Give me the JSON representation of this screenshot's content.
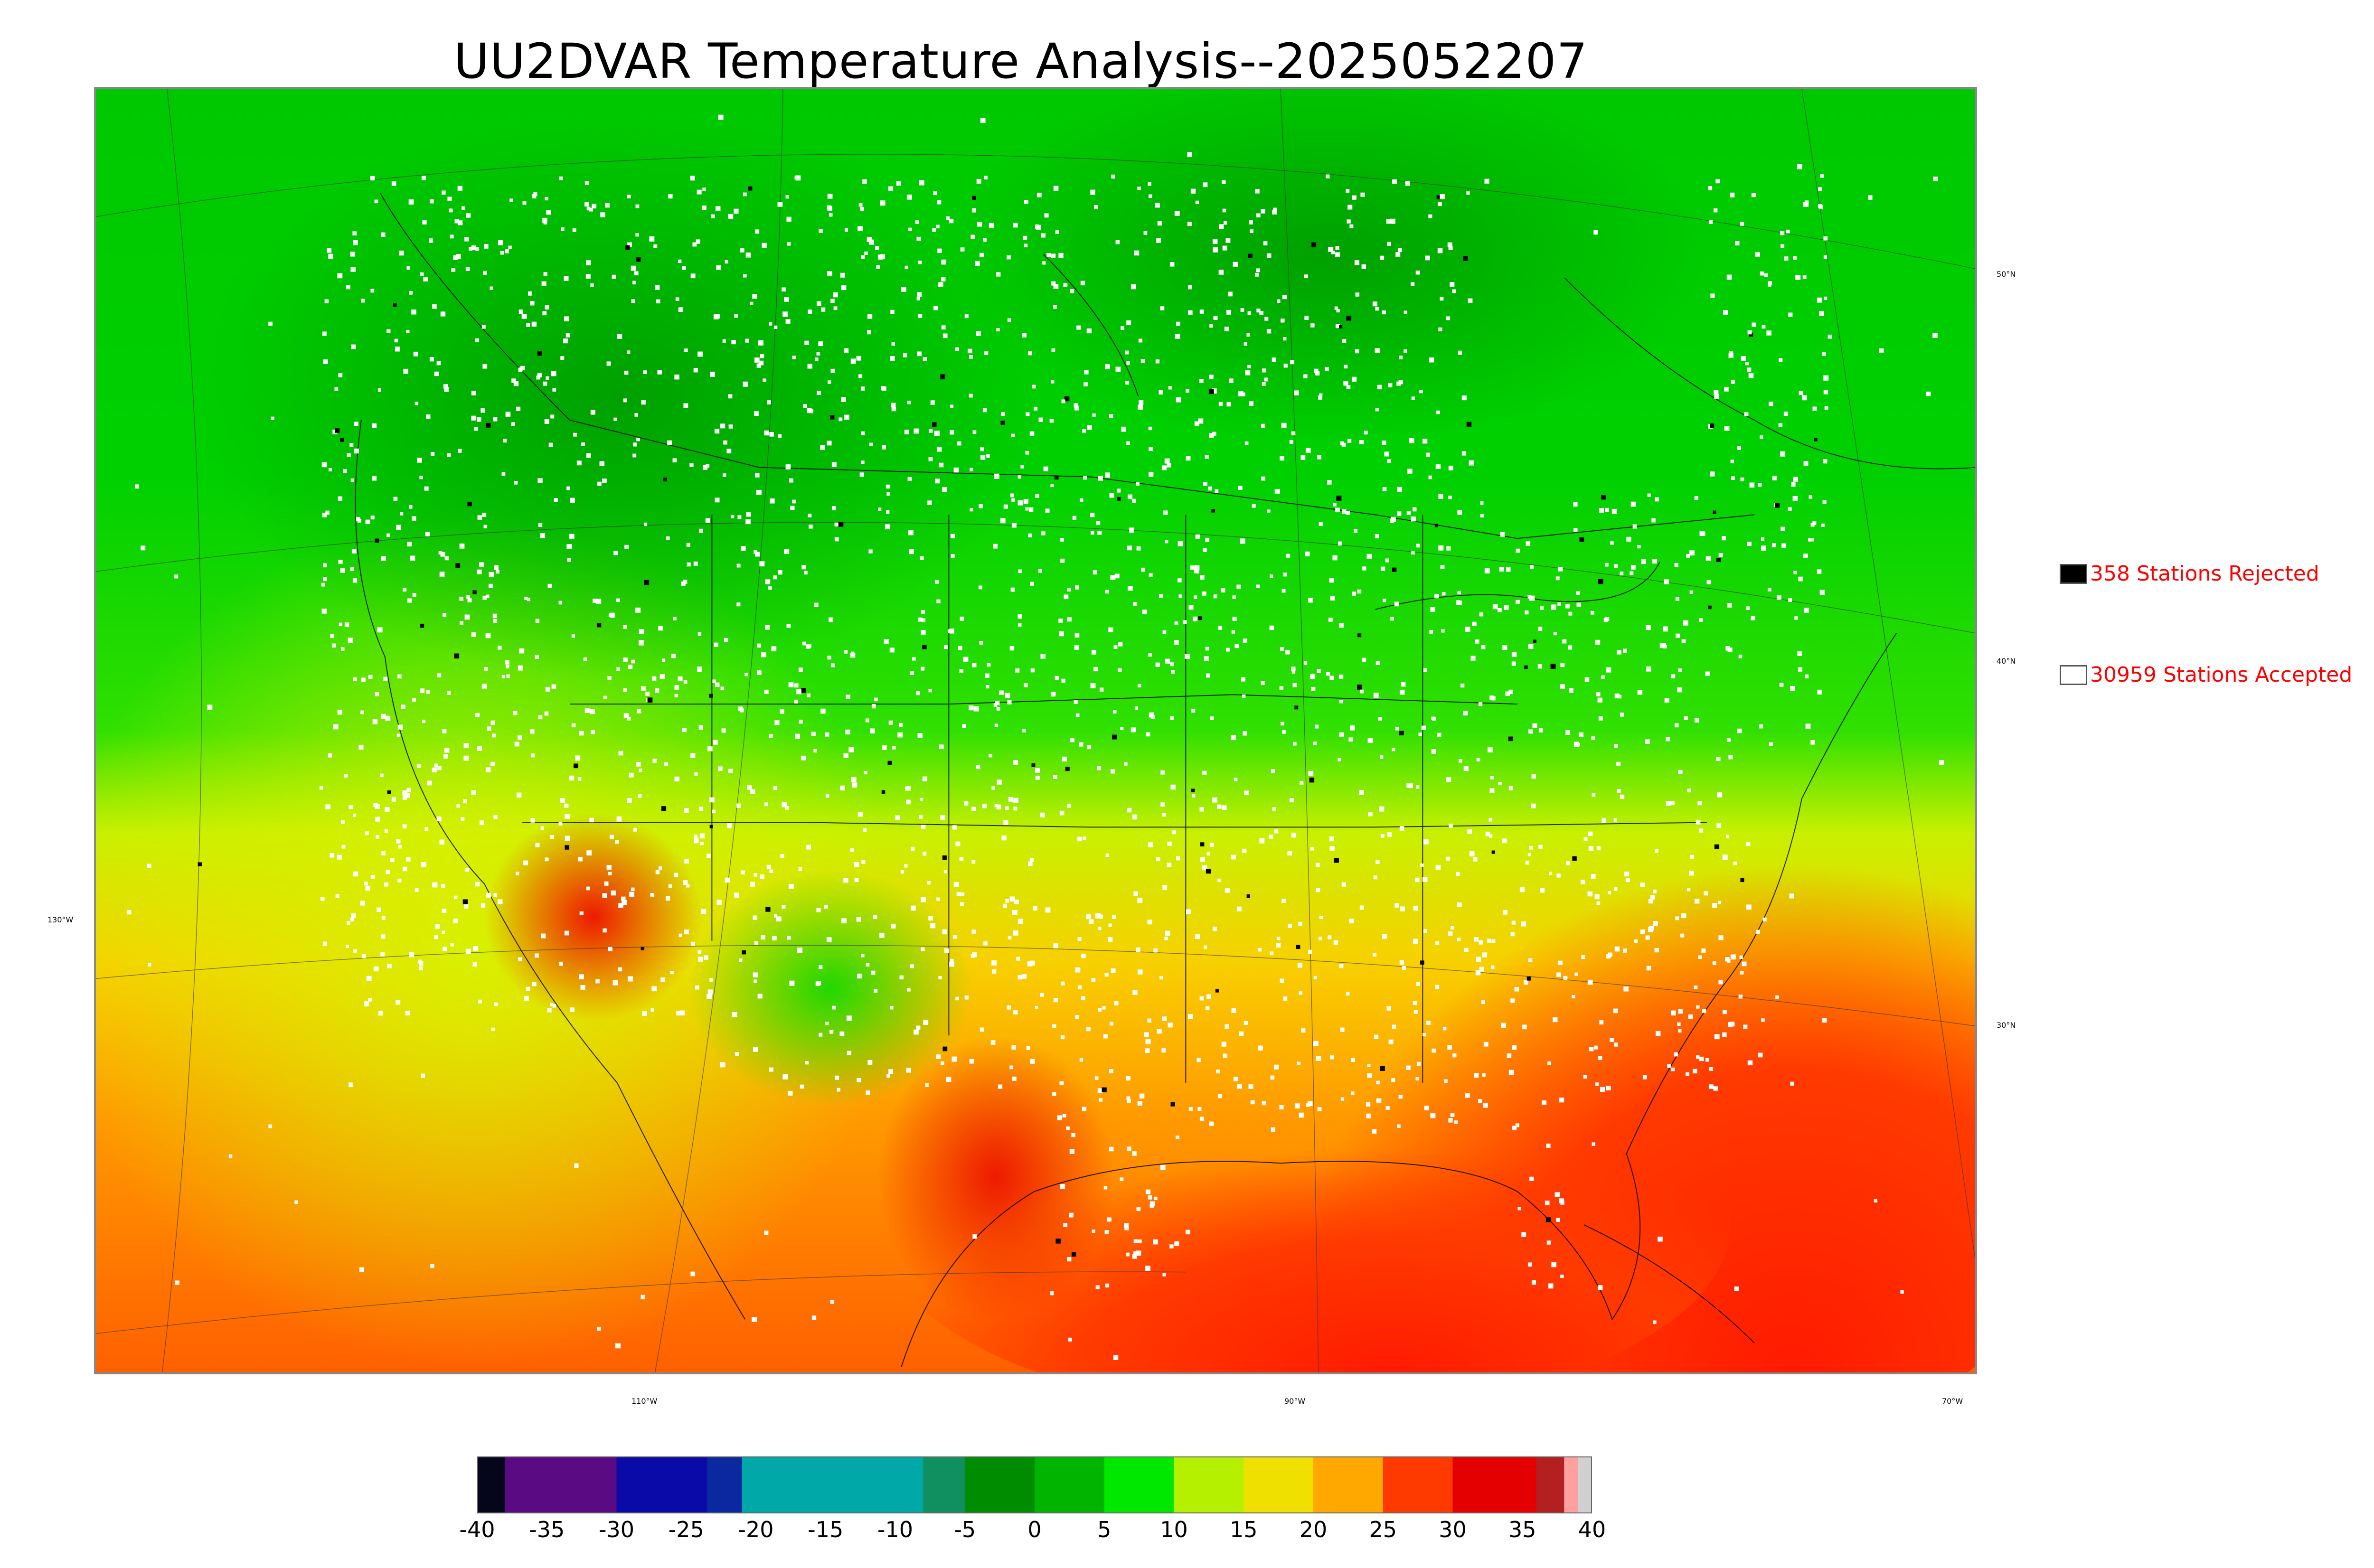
{
  "title": "UU2DVAR Temperature Analysis--2025052207",
  "legend": {
    "rejected": {
      "label": "358 Stations Rejected",
      "color": "#000000"
    },
    "accepted": {
      "label": "30959 Stations Accepted",
      "color": "#ffffff"
    },
    "text_color": "#ff0000"
  },
  "longitude_labels": [
    "130°W",
    "110°W",
    "90°W",
    "70°W"
  ],
  "latitude_labels": [
    "50°N",
    "40°N",
    "30°N"
  ],
  "colorbar": {
    "min": -40,
    "max": 40,
    "ticks": [
      "-40",
      "-35",
      "-30",
      "-25",
      "-20",
      "-15",
      "-10",
      "-5",
      "0",
      "5",
      "10",
      "15",
      "20",
      "25",
      "30",
      "35",
      "40"
    ],
    "colors": [
      {
        "from": -40,
        "to": -38,
        "color": "#06061a"
      },
      {
        "from": -38,
        "to": -30,
        "color": "#5a0a82"
      },
      {
        "from": -30,
        "to": -23.5,
        "color": "#0a0aa8"
      },
      {
        "from": -23.5,
        "to": -21,
        "color": "#0a28a0"
      },
      {
        "from": -21,
        "to": -8,
        "color": "#00a8a8"
      },
      {
        "from": -8,
        "to": -5,
        "color": "#109060"
      },
      {
        "from": -5,
        "to": 0,
        "color": "#008c00"
      },
      {
        "from": 0,
        "to": 5,
        "color": "#00b400"
      },
      {
        "from": 5,
        "to": 10,
        "color": "#00e800"
      },
      {
        "from": 10,
        "to": 15,
        "color": "#b4f000"
      },
      {
        "from": 15,
        "to": 20,
        "color": "#f0e000"
      },
      {
        "from": 20,
        "to": 25,
        "color": "#ffa800"
      },
      {
        "from": 25,
        "to": 30,
        "color": "#ff3a00"
      },
      {
        "from": 30,
        "to": 36,
        "color": "#e40000"
      },
      {
        "from": 36,
        "to": 38,
        "color": "#b42020"
      },
      {
        "from": 38,
        "to": 39,
        "color": "#ffa0a0"
      },
      {
        "from": 39,
        "to": 40,
        "color": "#d0d0d0"
      }
    ]
  }
}
